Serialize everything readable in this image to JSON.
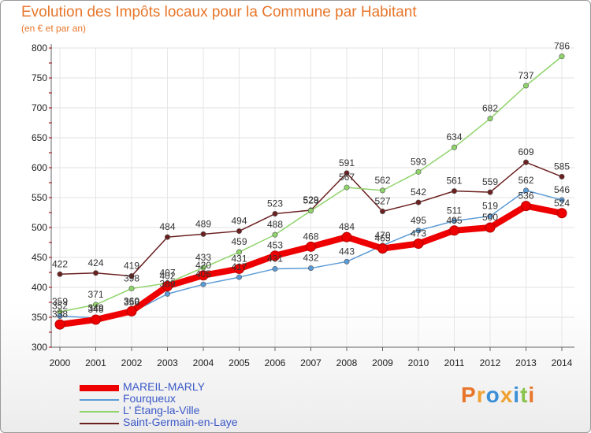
{
  "title": "Evolution des Impôts locaux pour la Commune par Habitant",
  "subtitle": "(en € et par an)",
  "brand": "Proxiti",
  "chart_data": {
    "type": "line",
    "title": "Evolution des Impôts locaux pour la Commune par Habitant",
    "subtitle": "(en € et par an)",
    "ylim": [
      300,
      800
    ],
    "yticks": [
      300,
      350,
      400,
      450,
      500,
      550,
      600,
      650,
      700,
      750,
      800
    ],
    "categories": [
      "2000",
      "2001",
      "2002",
      "2003",
      "2004",
      "2005",
      "2006",
      "2007",
      "2008",
      "2009",
      "2010",
      "2011",
      "2012",
      "2013",
      "2014"
    ],
    "series": [
      {
        "name": "MAREIL-MARLY",
        "color": "#ee0000",
        "values": [
          338,
          346,
          360,
          402,
          420,
          431,
          453,
          468,
          484,
          465,
          473,
          495,
          500,
          536,
          524
        ]
      },
      {
        "name": "Fourqueux",
        "color": "#5b9bd5",
        "values": [
          352,
          349,
          358,
          389,
          405,
          417,
          431,
          432,
          443,
          470,
          495,
          511,
          519,
          562,
          546
        ]
      },
      {
        "name": "L' Étang-la-Ville",
        "color": "#8fd46a",
        "values": [
          359,
          371,
          398,
          407,
          433,
          459,
          488,
          528,
          567,
          562,
          593,
          634,
          682,
          737,
          786
        ]
      },
      {
        "name": "Saint-Germain-en-Laye",
        "color": "#6b2020",
        "values": [
          422,
          424,
          419,
          484,
          489,
          494,
          523,
          529,
          591,
          527,
          542,
          561,
          559,
          609,
          585
        ]
      }
    ]
  }
}
